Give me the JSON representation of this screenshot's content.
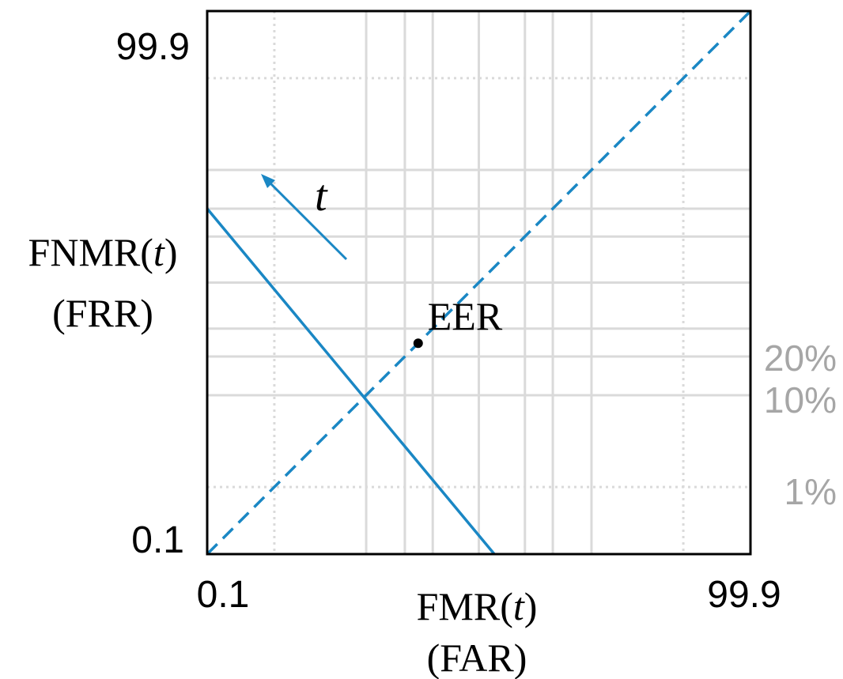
{
  "chart_data": {
    "type": "line",
    "title": "",
    "xlabel": "FMR(t)",
    "xlabel_sub": "(FAR)",
    "ylabel": "FNMR(t)",
    "ylabel_sub": "(FRR)",
    "x_range_labels": [
      "0.1",
      "99.9"
    ],
    "y_range_labels": [
      "0.1",
      "99.9"
    ],
    "xlim": [
      0.1,
      99.9
    ],
    "ylim": [
      0.1,
      99.9
    ],
    "scale": "probit",
    "grid": true,
    "grid_lines_percent": [
      1,
      10,
      20,
      30,
      50,
      70,
      80,
      90,
      99
    ],
    "right_annotations": [
      {
        "text": "20%",
        "value": 20
      },
      {
        "text": "10%",
        "value": 10
      },
      {
        "text": "1%",
        "value": 1
      }
    ],
    "series": [
      {
        "style": "solid",
        "color": "#1a87c4",
        "points": [
          [
            0.1,
            80
          ],
          [
            57,
            0.1
          ]
        ]
      },
      {
        "style": "dashed",
        "color": "#1a87c4",
        "points": [
          [
            0.1,
            0.1
          ],
          [
            99.9,
            99.9
          ]
        ]
      }
    ],
    "eer_point": {
      "label": "EER",
      "x": 24.5,
      "y": 24.5
    },
    "arrow_label": "t",
    "colors": {
      "curve": "#1a87c4",
      "grid": "#dadada",
      "axis": "#000000",
      "annotation": "#a6a6a6"
    }
  }
}
